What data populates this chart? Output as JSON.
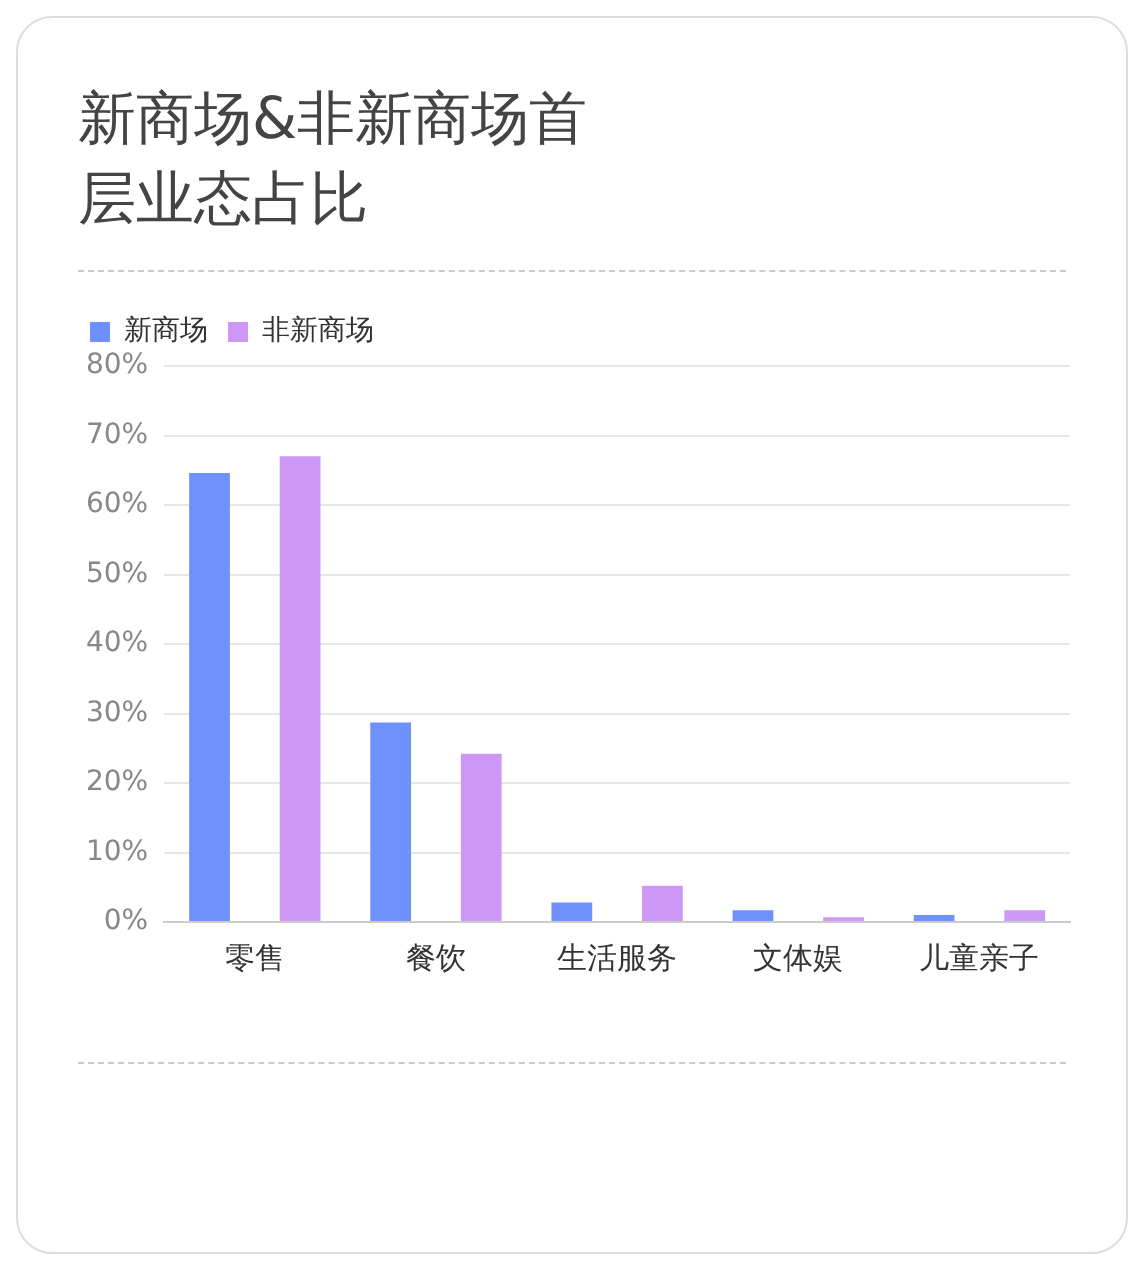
{
  "chart_data": {
    "type": "bar",
    "title": "新商场&非新商场首层业态占比",
    "categories": [
      "零售",
      "餐饮",
      "生活服务",
      "文体娱",
      "儿童亲子"
    ],
    "series": [
      {
        "name": "新商场",
        "color": "#6e91fb",
        "values": [
          64.6,
          28.7,
          2.8,
          1.7,
          1.0
        ]
      },
      {
        "name": "非新商场",
        "color": "#cd98f5",
        "values": [
          67.0,
          24.2,
          5.2,
          0.7,
          1.7
        ]
      }
    ],
    "ylim": [
      0,
      80
    ],
    "yticks": [
      {
        "value": 0,
        "label": "0%"
      },
      {
        "value": 10,
        "label": "10%"
      },
      {
        "value": 20,
        "label": "20%"
      },
      {
        "value": 30,
        "label": "30%"
      },
      {
        "value": 40,
        "label": "40%"
      },
      {
        "value": 50,
        "label": "50%"
      },
      {
        "value": 60,
        "label": "60%"
      },
      {
        "value": 70,
        "label": "70%"
      },
      {
        "value": 80,
        "label": "80%"
      }
    ],
    "grid": "y",
    "legend": "top left"
  }
}
